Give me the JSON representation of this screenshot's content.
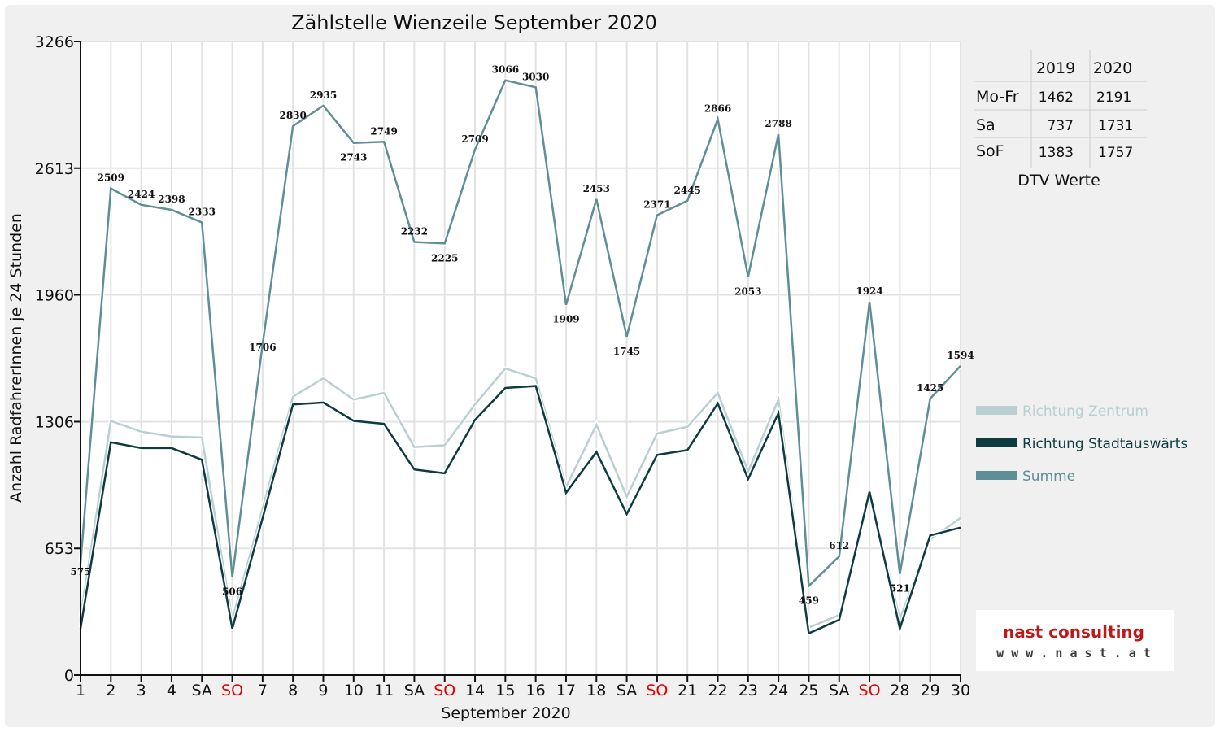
{
  "chart_data": {
    "type": "line",
    "title": "Zählstelle Wienzeile September 2020",
    "xlabel": "September 2020",
    "ylabel": "Anzahl RadfahrerInnen je 24 Stunden",
    "ylim": [
      0,
      3266
    ],
    "yticks": [
      "0",
      "653",
      "1306",
      "1960",
      "2613",
      "3266"
    ],
    "categories": [
      "1",
      "2",
      "3",
      "4",
      "SA",
      "SO",
      "7",
      "8",
      "9",
      "10",
      "11",
      "SA",
      "SO",
      "14",
      "15",
      "16",
      "17",
      "18",
      "SA",
      "SO",
      "21",
      "22",
      "23",
      "24",
      "25",
      "SA",
      "SO",
      "28",
      "29",
      "30"
    ],
    "sunday_label": "SO",
    "grid": true,
    "legend_position": "right",
    "series": [
      {
        "name": "Richtung Zentrum",
        "color": "#b9cfd1",
        "values": [
          300,
          1310,
          1255,
          1230,
          1225,
          285,
          860,
          1435,
          1530,
          1420,
          1455,
          1175,
          1185,
          1395,
          1580,
          1530,
          970,
          1290,
          920,
          1245,
          1280,
          1455,
          1050,
          1420,
          245,
          310,
          940,
          290,
          700,
          810
        ]
      },
      {
        "name": "Richtung Stadtauswärts",
        "color": "#0d3b40",
        "values": [
          240,
          1200,
          1170,
          1170,
          1110,
          240,
          810,
          1395,
          1405,
          1310,
          1295,
          1060,
          1040,
          1315,
          1480,
          1490,
          940,
          1150,
          830,
          1135,
          1160,
          1400,
          1010,
          1350,
          215,
          285,
          945,
          240,
          720,
          760
        ]
      },
      {
        "name": "Summe",
        "color": "#5e8f97",
        "values": [
          575,
          2509,
          2424,
          2398,
          2333,
          506,
          1706,
          2830,
          2935,
          2743,
          2749,
          2232,
          2225,
          2709,
          3066,
          3030,
          1909,
          2453,
          1745,
          2371,
          2445,
          2866,
          2053,
          2788,
          459,
          612,
          1924,
          521,
          1425,
          1594
        ]
      }
    ],
    "data_labels": [
      "575",
      "2509",
      "2424",
      "2398",
      "2333",
      "506",
      "1706",
      "2830",
      "2935",
      "2743",
      "2749",
      "2232",
      "2225",
      "2709",
      "3066",
      "3030",
      "1909",
      "2453",
      "1745",
      "2371",
      "2445",
      "2866",
      "2053",
      "2788",
      "459",
      "612",
      "1924",
      "521",
      "1425",
      "1594"
    ]
  },
  "dtv_table": {
    "caption": "DTV Werte",
    "headers": [
      "",
      "2019",
      "2020"
    ],
    "rows": [
      {
        "label": "Mo-Fr",
        "v2019": "1462",
        "v2020": "2191"
      },
      {
        "label": "Sa",
        "v2019": "737",
        "v2020": "1731"
      },
      {
        "label": "SoF",
        "v2019": "1383",
        "v2020": "1757"
      }
    ]
  },
  "logo": {
    "line1": "nast consulting",
    "line2": "w w w . n a s t . a t"
  }
}
